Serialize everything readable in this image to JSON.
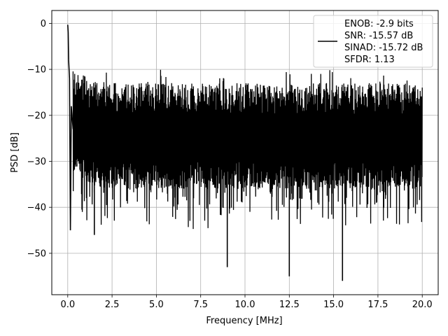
{
  "chart_data": {
    "type": "line",
    "title": "",
    "xlabel": "Frequency [MHz]",
    "ylabel": "PSD [dB]",
    "xlim": [
      -0.9,
      20.9
    ],
    "ylim": [
      -59,
      2.8
    ],
    "x_ticks": [
      0.0,
      2.5,
      5.0,
      7.5,
      10.0,
      12.5,
      15.0,
      17.5,
      20.0
    ],
    "x_tick_labels": [
      "0.0",
      "2.5",
      "5.0",
      "7.5",
      "10.0",
      "12.5",
      "15.0",
      "17.5",
      "20.0"
    ],
    "y_ticks": [
      0,
      -10,
      -20,
      -30,
      -40,
      -50
    ],
    "y_tick_labels": [
      "0",
      "−10",
      "−20",
      "−30",
      "−40",
      "−50"
    ],
    "grid": true,
    "legend_position": "top-right",
    "legend": [
      "ENOB: -2.9 bits",
      "SNR: -15.57 dB",
      "SINAD: -15.72 dB",
      "SFDR: 1.13"
    ],
    "line_color": "#000000",
    "series": [
      {
        "x": [
          0.0,
          0.025,
          0.05,
          0.1,
          0.15,
          0.2,
          0.3,
          0.5,
          1.0,
          1.5,
          2.0,
          2.5,
          3.0,
          3.5,
          4.0,
          4.5,
          5.0,
          5.5,
          6.0,
          6.5,
          7.0,
          7.5,
          8.0,
          8.5,
          9.0,
          9.5,
          10.0,
          10.5,
          11.0,
          11.5,
          12.0,
          12.5,
          13.0,
          13.5,
          14.0,
          14.5,
          15.0,
          15.5,
          16.0,
          16.5,
          17.0,
          17.5,
          18.0,
          18.5,
          19.0,
          19.5,
          20.0
        ],
        "y": [
          -0.3,
          -2.0,
          -8.0,
          -12.0,
          -45.0,
          -18.0,
          -23.0,
          -25.0,
          -24.0,
          -46.0,
          -25.0,
          -25.0,
          -25.0,
          -25.0,
          -25.0,
          -24.0,
          -25.0,
          -25.0,
          -25.0,
          -25.0,
          -25.0,
          -25.0,
          -25.0,
          -25.0,
          -53.0,
          -25.0,
          -25.0,
          -25.0,
          -25.0,
          -25.0,
          -25.0,
          -55.0,
          -25.0,
          -25.0,
          -25.0,
          -25.0,
          -25.0,
          -56.0,
          -25.0,
          -25.0,
          -25.0,
          -25.0,
          -25.0,
          -25.0,
          -25.0,
          -25.0,
          -25.0
        ]
      }
    ]
  }
}
